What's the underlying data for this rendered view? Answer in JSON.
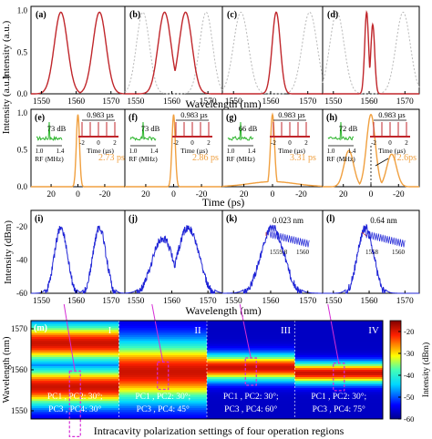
{
  "colors": {
    "red": "#c0262b",
    "orange": "#f0a040",
    "blue": "#1f24d6",
    "green": "#2bb52b",
    "magenta": "#d62ed6",
    "gray": "#b8b8b8",
    "dark_red": "#9a1d22"
  },
  "chart_data": [
    {
      "type": "line",
      "row": "spectra",
      "ylabel": "Intensity (a.u.)",
      "xlabel": "Wavelength (nm)",
      "x_ticks": [
        "1550",
        "1560",
        "1570"
      ],
      "y_ticks": [
        "0.0",
        "0.5",
        "1.0"
      ],
      "xlim": [
        1547,
        1574
      ],
      "ylim": [
        0,
        1.05
      ],
      "panels": [
        {
          "label": "(a)",
          "peaks": [
            {
              "center": 1555.6,
              "sigma": 1.9,
              "amp": 1.0
            },
            {
              "center": 1566.7,
              "sigma": 1.9,
              "amp": 1.0
            }
          ],
          "gray_peaks": []
        },
        {
          "label": "(b)",
          "peaks": [
            {
              "center": 1558.0,
              "sigma": 1.8,
              "amp": 1.0
            },
            {
              "center": 1563.8,
              "sigma": 1.8,
              "amp": 1.0
            }
          ],
          "gray_peaks": [
            {
              "center": 1552.0,
              "sigma": 1.8,
              "amp": 1.0
            },
            {
              "center": 1569.5,
              "sigma": 1.8,
              "amp": 1.0
            }
          ]
        },
        {
          "label": "(c)",
          "peaks": [
            {
              "center": 1561.5,
              "sigma": 1.1,
              "amp": 1.0
            }
          ],
          "gray_peaks": [
            {
              "center": 1552.0,
              "sigma": 2.0,
              "amp": 1.0
            },
            {
              "center": 1570.5,
              "sigma": 2.0,
              "amp": 1.0
            }
          ]
        },
        {
          "label": "(d)",
          "peaks": [
            {
              "center": 1559.3,
              "sigma": 0.55,
              "amp": 1.0
            },
            {
              "center": 1561.0,
              "sigma": 0.55,
              "amp": 0.85
            }
          ],
          "gray_peaks": [
            {
              "center": 1551.0,
              "sigma": 2.0,
              "amp": 1.0
            },
            {
              "center": 1569.5,
              "sigma": 2.0,
              "amp": 1.0
            }
          ]
        }
      ]
    },
    {
      "type": "line",
      "row": "autocorrelation",
      "ylabel": "Intensity (a.u.)",
      "xlabel": "Time (ps)",
      "x_ticks": [
        "20",
        "0",
        "-20"
      ],
      "y_ticks": [
        "0.0",
        "0.5",
        "1.0"
      ],
      "xlim": [
        35,
        -35
      ],
      "ylim": [
        0,
        1.05
      ],
      "panels": [
        {
          "label": "(e)",
          "pulse_width": "2.73 ps",
          "period": "0.983 µs",
          "snr": "73 dB",
          "profile": "single"
        },
        {
          "label": "(f)",
          "pulse_width": "2.86 ps",
          "period": "0.983 µs",
          "snr": "73 dB",
          "profile": "single"
        },
        {
          "label": "(g)",
          "pulse_width": "3.31 ps",
          "period": "0.983 µs",
          "snr": "66 dB",
          "profile": "pedestal"
        },
        {
          "label": "(h)",
          "pulse_width": "12.6ps",
          "period": "0.983 µs",
          "snr": "72 dB",
          "profile": "triple"
        }
      ],
      "inset_rf_label": "RF (MHz)",
      "inset_rf_ticks": [
        "1.0",
        "1.4"
      ],
      "inset_time_label": "Time (µs)",
      "inset_time_ticks": [
        "-2",
        "0",
        "2"
      ]
    },
    {
      "type": "line",
      "row": "spectra_dbm",
      "ylabel": "Intensity (dBm)",
      "xlabel": "Wavelength (nm)",
      "x_ticks": [
        "1550",
        "1560",
        "1570"
      ],
      "y_ticks": [
        "-60",
        "-40",
        "-20"
      ],
      "xlim": [
        1547,
        1574
      ],
      "ylim": [
        -60,
        -10
      ],
      "panels": [
        {
          "label": "(i)",
          "peaks": [
            {
              "center": 1555.6,
              "sigma": 1.9,
              "amp": 1.0
            },
            {
              "center": 1566.7,
              "sigma": 1.9,
              "amp": 1.0
            }
          ]
        },
        {
          "label": "(j)",
          "peaks": [
            {
              "center": 1557.5,
              "sigma": 3.0,
              "amp": 0.85
            },
            {
              "center": 1564.5,
              "sigma": 3.0,
              "amp": 1.0
            }
          ]
        },
        {
          "label": "(k)",
          "peaks": [
            {
              "center": 1560.5,
              "sigma": 3.2,
              "amp": 1.0
            }
          ],
          "inset_label": "0.023 nm",
          "inset_ticks": [
            "1559.8",
            "1560"
          ]
        },
        {
          "label": "(l)",
          "peaks": [
            {
              "center": 1559.0,
              "sigma": 2.3,
              "amp": 1.0
            }
          ],
          "inset_label": "0.64 nm",
          "inset_ticks": [
            "1558",
            "1560"
          ]
        }
      ]
    },
    {
      "type": "heatmap",
      "row": "evolution",
      "label": "(m)",
      "ylabel": "Wavelength (nm)",
      "y_ticks": [
        "1550",
        "1560",
        "1570"
      ],
      "ylim": [
        1548,
        1572
      ],
      "colorbar_label": "Intensity (dBm)",
      "colorbar_ticks": [
        "-20",
        "-30",
        "-40",
        "-50",
        "-60"
      ],
      "colorbar_range": [
        -60,
        -15
      ],
      "regions": [
        {
          "numeral": "I",
          "settings_line1": "PC1 , PC2: 30°;",
          "settings_line2": "PC3 , PC4: 30°",
          "bands": [
            {
              "center": 1555.8,
              "width": 3.2
            },
            {
              "center": 1566.5,
              "width": 3.2
            }
          ]
        },
        {
          "numeral": "II",
          "settings_line1": "PC1 , PC2: 30°;",
          "settings_line2": "PC3 , PC4: 45°",
          "bands": [
            {
              "center": 1559.5,
              "width": 5.0
            }
          ]
        },
        {
          "numeral": "III",
          "settings_line1": "PC1 , PC2: 30°;",
          "settings_line2": "PC3 , PC4: 60°",
          "bands": [
            {
              "center": 1560.5,
              "width": 2.2
            }
          ]
        },
        {
          "numeral": "IV",
          "settings_line1": "PC1 , PC2: 30°;",
          "settings_line2": "PC3 , PC4: 75°",
          "bands": [
            {
              "center": 1559.2,
              "width": 1.8
            }
          ]
        }
      ],
      "caption": "Intracavity polarization settings of four operation regions"
    }
  ]
}
